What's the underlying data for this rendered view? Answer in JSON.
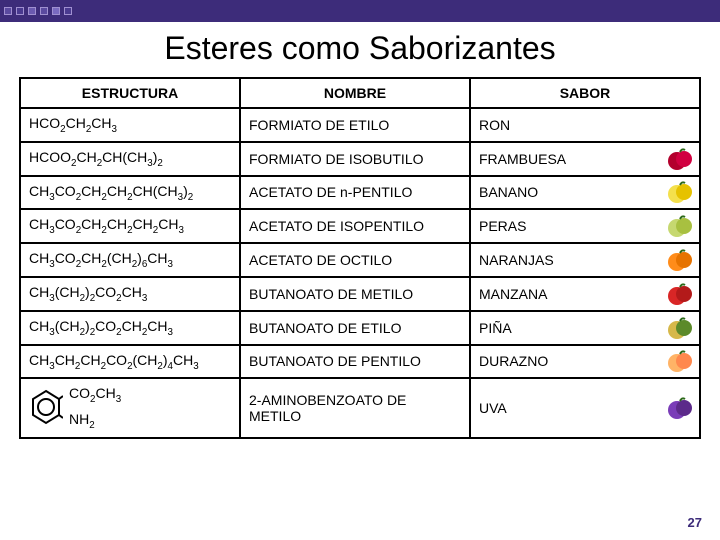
{
  "topbar": {
    "square_colors": [
      "#5b4aa0",
      "#4a3a90",
      "#6b5ab0",
      "#5b4aa0",
      "#7a6ac0",
      "#4a3a90"
    ]
  },
  "title": "Esteres como Saborizantes",
  "table": {
    "headers": {
      "structure": "ESTRUCTURA",
      "name": "NOMBRE",
      "flavor": "SABOR"
    },
    "rows": [
      {
        "structure_html": "HCO<sub>2</sub>CH<sub>2</sub>CH<sub>3</sub>",
        "name": "FORMIATO DE ETILO",
        "flavor": "RON",
        "fruit_colors": null
      },
      {
        "structure_html": "HCOO<sub>2</sub>CH<sub>2</sub>CH(CH<sub>3</sub>)<sub>2</sub>",
        "name": "FORMIATO DE ISOBUTILO",
        "flavor": "FRAMBUESA",
        "fruit_colors": {
          "a": "#b3002d",
          "b": "#d10040"
        }
      },
      {
        "structure_html": "CH<sub>3</sub>CO<sub>2</sub>CH<sub>2</sub>CH<sub>2</sub>CH(CH<sub>3</sub>)<sub>2</sub>",
        "name": "ACETATO DE n-PENTILO",
        "flavor": "BANANO",
        "fruit_colors": {
          "a": "#f4e04d",
          "b": "#e6c200"
        }
      },
      {
        "structure_html": "CH<sub>3</sub>CO<sub>2</sub>CH<sub>2</sub>CH<sub>2</sub>CH<sub>2</sub>CH<sub>3</sub>",
        "name": "ACETATO DE ISOPENTILO",
        "flavor": "PERAS",
        "fruit_colors": {
          "a": "#c6d870",
          "b": "#a8c040"
        }
      },
      {
        "structure_html": "CH<sub>3</sub>CO<sub>2</sub>CH<sub>2</sub>(CH<sub>2</sub>)<sub>6</sub>CH<sub>3</sub>",
        "name": "ACETATO DE OCTILO",
        "flavor": "NARANJAS",
        "fruit_colors": {
          "a": "#ff8c1a",
          "b": "#e67300"
        }
      },
      {
        "structure_html": "CH<sub>3</sub>(CH<sub>2</sub>)<sub>2</sub>CO<sub>2</sub>CH<sub>3</sub>",
        "name": "BUTANOATO DE METILO",
        "flavor": "MANZANA",
        "fruit_colors": {
          "a": "#d92626",
          "b": "#b31a1a"
        }
      },
      {
        "structure_html": "CH<sub>3</sub>(CH<sub>2</sub>)<sub>2</sub>CO<sub>2</sub>CH<sub>2</sub>CH<sub>3</sub>",
        "name": "BUTANOATO DE ETILO",
        "flavor": "PIÑA",
        "fruit_colors": {
          "a": "#d6b84a",
          "b": "#5c8a2a"
        }
      },
      {
        "structure_html": "CH<sub>3</sub>CH<sub>2</sub>CH<sub>2</sub>CO<sub>2</sub>(CH<sub>2</sub>)<sub>4</sub>CH<sub>3</sub>",
        "name": "BUTANOATO DE PENTILO",
        "flavor": "DURAZNO",
        "fruit_colors": {
          "a": "#ffb366",
          "b": "#ff884d"
        }
      }
    ],
    "last_row": {
      "structure_lines": {
        "top": "CO<sub>2</sub>CH<sub>3</sub>",
        "bottom": "NH<sub>2</sub>"
      },
      "name": "2-AMINOBENZOATO DE METILO",
      "flavor": "UVA",
      "fruit_colors": {
        "a": "#7a3db8",
        "b": "#5c2a8a"
      }
    }
  },
  "page_number": "27"
}
